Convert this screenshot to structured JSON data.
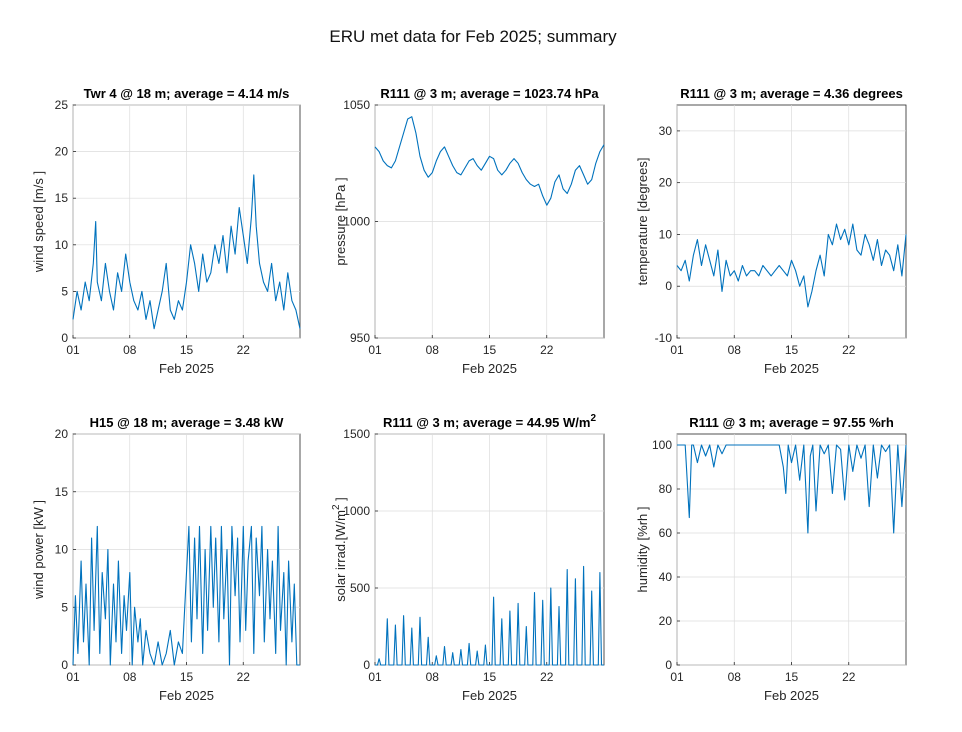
{
  "figure": {
    "title": "ERU met data for Feb 2025; summary",
    "series_color": "#0072BD"
  },
  "chart_data": [
    {
      "type": "line",
      "title": "Twr 4 @ 18  m; average = 4.14 m/s",
      "ylabel": "wind speed  [m/s    ]",
      "xlabel": "Feb 2025",
      "xlim": [
        1,
        29
      ],
      "ylim": [
        0,
        25
      ],
      "xticks": [
        1,
        8,
        15,
        22
      ],
      "xtick_labels": [
        "01",
        "08",
        "15",
        "22"
      ],
      "yticks": [
        0,
        5,
        10,
        15,
        20,
        25
      ],
      "grid": true,
      "series": [
        {
          "x": [
            1,
            1.5,
            2,
            2.5,
            3,
            3.5,
            3.8,
            4,
            4.5,
            5,
            5.5,
            6,
            6.5,
            7,
            7.5,
            8,
            8.5,
            9,
            9.5,
            10,
            10.5,
            11,
            11.5,
            12,
            12.5,
            13,
            13.5,
            14,
            14.5,
            15,
            15.5,
            16,
            16.5,
            17,
            17.5,
            18,
            18.5,
            19,
            19.5,
            20,
            20.5,
            21,
            21.5,
            22,
            22.5,
            23,
            23.3,
            23.6,
            24,
            24.5,
            25,
            25.5,
            26,
            26.5,
            27,
            27.5,
            28,
            28.5,
            29
          ],
          "y": [
            2,
            5,
            3,
            6,
            4,
            8,
            12.5,
            6,
            4,
            8,
            5,
            3,
            7,
            5,
            9,
            6,
            4,
            3,
            5,
            2,
            4,
            1,
            3,
            5,
            8,
            3,
            2,
            4,
            3,
            6,
            10,
            8,
            5,
            9,
            6,
            7,
            10,
            8,
            11,
            7,
            12,
            9,
            14,
            11,
            8,
            13,
            17.5,
            12,
            8,
            6,
            5,
            8,
            4,
            6,
            3,
            7,
            4,
            3,
            1
          ]
        }
      ]
    },
    {
      "type": "line",
      "title": "R111  @ 3   m; average = 1023.74 hPa",
      "ylabel": "pressure   [hPa    ]",
      "xlabel": "Feb 2025",
      "xlim": [
        1,
        29
      ],
      "ylim": [
        950,
        1050
      ],
      "xticks": [
        1,
        8,
        15,
        22
      ],
      "xtick_labels": [
        "01",
        "08",
        "15",
        "22"
      ],
      "yticks": [
        950,
        1000,
        1050
      ],
      "grid": true,
      "series": [
        {
          "x": [
            1,
            1.5,
            2,
            2.5,
            3,
            3.5,
            4,
            4.5,
            5,
            5.5,
            6,
            6.5,
            7,
            7.5,
            8,
            8.5,
            9,
            9.5,
            10,
            10.5,
            11,
            11.5,
            12,
            12.5,
            13,
            13.5,
            14,
            14.5,
            15,
            15.5,
            16,
            16.5,
            17,
            17.5,
            18,
            18.5,
            19,
            19.5,
            20,
            20.5,
            21,
            21.5,
            22,
            22.5,
            23,
            23.5,
            24,
            24.5,
            25,
            25.5,
            26,
            26.5,
            27,
            27.5,
            28,
            28.5,
            29
          ],
          "y": [
            1032,
            1030,
            1026,
            1024,
            1023,
            1026,
            1032,
            1038,
            1044,
            1045,
            1038,
            1028,
            1022,
            1019,
            1021,
            1026,
            1030,
            1032,
            1028,
            1024,
            1021,
            1020,
            1023,
            1026,
            1027,
            1024,
            1022,
            1025,
            1028,
            1027,
            1022,
            1020,
            1022,
            1025,
            1027,
            1025,
            1021,
            1018,
            1016,
            1015,
            1016,
            1011,
            1007,
            1010,
            1017,
            1020,
            1014,
            1012,
            1016,
            1022,
            1024,
            1020,
            1016,
            1018,
            1025,
            1030,
            1033
          ]
        }
      ]
    },
    {
      "type": "line",
      "title": "R111  @ 3   m; average = 4.36 degrees",
      "ylabel": "temperature [degrees]",
      "xlabel": "Feb 2025",
      "xlim": [
        1,
        29
      ],
      "ylim": [
        -10,
        35
      ],
      "xticks": [
        1,
        8,
        15,
        22
      ],
      "xtick_labels": [
        "01",
        "08",
        "15",
        "22"
      ],
      "yticks": [
        -10,
        0,
        10,
        20,
        30
      ],
      "grid": true,
      "series": [
        {
          "x": [
            1,
            1.5,
            2,
            2.5,
            3,
            3.5,
            4,
            4.5,
            5,
            5.5,
            6,
            6.5,
            7,
            7.5,
            8,
            8.5,
            9,
            9.5,
            10,
            10.5,
            11,
            11.5,
            12,
            12.5,
            13,
            13.5,
            14,
            14.5,
            15,
            15.5,
            16,
            16.5,
            17,
            17.5,
            18,
            18.5,
            19,
            19.5,
            20,
            20.5,
            21,
            21.5,
            22,
            22.5,
            23,
            23.5,
            24,
            24.5,
            25,
            25.5,
            26,
            26.5,
            27,
            27.5,
            28,
            28.5,
            29
          ],
          "y": [
            4,
            3,
            5,
            1,
            6,
            9,
            4,
            8,
            5,
            2,
            7,
            -1,
            5,
            2,
            3,
            1,
            4,
            2,
            3,
            3,
            2,
            4,
            3,
            2,
            3,
            4,
            3,
            2,
            5,
            3,
            0,
            2,
            -4,
            -1,
            3,
            6,
            2,
            10,
            8,
            12,
            9,
            11,
            8,
            12,
            7,
            6,
            10,
            8,
            5,
            9,
            4,
            7,
            6,
            3,
            8,
            2,
            10
          ]
        }
      ]
    },
    {
      "type": "line",
      "title": "H15   @ 18  m; average = 3.48 kW",
      "ylabel": "wind power  [kW    ]",
      "xlabel": "Feb 2025",
      "xlim": [
        1,
        29
      ],
      "ylim": [
        0,
        20
      ],
      "xticks": [
        1,
        8,
        15,
        22
      ],
      "xtick_labels": [
        "01",
        "08",
        "15",
        "22"
      ],
      "yticks": [
        0,
        5,
        10,
        15,
        20
      ],
      "grid": true,
      "series": [
        {
          "x": [
            1,
            1.3,
            1.6,
            2,
            2.3,
            2.6,
            3,
            3.3,
            3.6,
            4,
            4.3,
            4.6,
            5,
            5.3,
            5.6,
            6,
            6.3,
            6.6,
            7,
            7.3,
            7.6,
            8,
            8.3,
            8.6,
            9,
            9.3,
            9.6,
            10,
            10.5,
            11,
            11.5,
            12,
            12.5,
            13,
            13.5,
            14,
            14.5,
            15,
            15.3,
            15.6,
            16,
            16.3,
            16.6,
            17,
            17.3,
            17.6,
            18,
            18.3,
            18.6,
            19,
            19.3,
            19.6,
            20,
            20.3,
            20.6,
            21,
            21.3,
            21.6,
            22,
            22.3,
            22.6,
            23,
            23.3,
            23.6,
            24,
            24.3,
            24.6,
            25,
            25.3,
            25.6,
            26,
            26.3,
            26.6,
            27,
            27.3,
            27.6,
            28,
            28.3,
            28.6,
            29
          ],
          "y": [
            0,
            6,
            1,
            9,
            2,
            7,
            0,
            11,
            3,
            12,
            1,
            8,
            4,
            10,
            0,
            7,
            2,
            9,
            1,
            6,
            3,
            8,
            0,
            5,
            2,
            4,
            0,
            3,
            1,
            0,
            2,
            0,
            1,
            3,
            0,
            2,
            1,
            8,
            12,
            2,
            11,
            4,
            12,
            1,
            10,
            3,
            12,
            5,
            11,
            2,
            12,
            4,
            10,
            0,
            12,
            6,
            11,
            2,
            12,
            3,
            9,
            12,
            1,
            11,
            6,
            12,
            2,
            10,
            4,
            9,
            1,
            12,
            3,
            8,
            0,
            9,
            2,
            7,
            0,
            0
          ]
        }
      ]
    },
    {
      "type": "line",
      "title": "R111  @ 3   m; average = 44.95 W/m",
      "title_sup": "2",
      "ylabel": "solar irrad.[W/m",
      "ylabel_sup": "2",
      "ylabel_tail": "    ]",
      "xlabel": "Feb 2025",
      "xlim": [
        1,
        29
      ],
      "ylim": [
        0,
        1500
      ],
      "xticks": [
        1,
        8,
        15,
        22
      ],
      "xtick_labels": [
        "01",
        "08",
        "15",
        "22"
      ],
      "yticks": [
        0,
        500,
        1000,
        1500
      ],
      "grid": true,
      "series": [
        {
          "x": [
            1,
            1.3,
            1.5,
            1.7,
            2,
            2.3,
            2.5,
            2.7,
            3,
            3.3,
            3.5,
            3.7,
            4,
            4.3,
            4.5,
            4.7,
            5,
            5.3,
            5.5,
            5.7,
            6,
            6.3,
            6.5,
            6.7,
            7,
            7.3,
            7.5,
            7.7,
            8,
            8.3,
            8.5,
            8.7,
            9,
            9.3,
            9.5,
            9.7,
            10,
            10.3,
            10.5,
            10.7,
            11,
            11.3,
            11.5,
            11.7,
            12,
            12.3,
            12.5,
            12.7,
            13,
            13.3,
            13.5,
            13.7,
            14,
            14.3,
            14.5,
            14.7,
            15,
            15.3,
            15.5,
            15.7,
            16,
            16.3,
            16.5,
            16.7,
            17,
            17.3,
            17.5,
            17.7,
            18,
            18.3,
            18.5,
            18.7,
            19,
            19.3,
            19.5,
            19.7,
            20,
            20.3,
            20.5,
            20.7,
            21,
            21.3,
            21.5,
            21.7,
            22,
            22.3,
            22.5,
            22.7,
            23,
            23.3,
            23.5,
            23.7,
            24,
            24.3,
            24.5,
            24.7,
            25,
            25.3,
            25.5,
            25.7,
            26,
            26.3,
            26.5,
            26.7,
            27,
            27.3,
            27.5,
            27.7,
            28,
            28.3,
            28.5,
            28.7,
            29
          ],
          "y": [
            0,
            0,
            40,
            0,
            0,
            0,
            300,
            0,
            0,
            0,
            260,
            0,
            0,
            0,
            320,
            0,
            0,
            0,
            240,
            0,
            0,
            0,
            310,
            0,
            0,
            0,
            180,
            0,
            0,
            0,
            60,
            0,
            0,
            0,
            120,
            0,
            0,
            0,
            80,
            0,
            0,
            0,
            100,
            0,
            0,
            0,
            140,
            0,
            0,
            0,
            90,
            0,
            0,
            0,
            130,
            0,
            0,
            0,
            440,
            0,
            0,
            0,
            300,
            0,
            0,
            0,
            350,
            0,
            0,
            0,
            400,
            0,
            0,
            0,
            250,
            0,
            0,
            0,
            470,
            0,
            0,
            0,
            420,
            0,
            0,
            0,
            500,
            0,
            0,
            0,
            380,
            0,
            0,
            0,
            620,
            0,
            0,
            0,
            560,
            0,
            0,
            0,
            640,
            0,
            0,
            0,
            480,
            0,
            0,
            0,
            600,
            0,
            0
          ]
        }
      ]
    },
    {
      "type": "line",
      "title": "R111  @ 3   m; average = 97.55 %rh",
      "ylabel": "humidity     [%rh     ]",
      "xlabel": "Feb 2025",
      "xlim": [
        1,
        29
      ],
      "ylim": [
        0,
        105
      ],
      "xticks": [
        1,
        8,
        15,
        22
      ],
      "xtick_labels": [
        "01",
        "08",
        "15",
        "22"
      ],
      "yticks": [
        0,
        20,
        40,
        60,
        80,
        100
      ],
      "grid": true,
      "series": [
        {
          "x": [
            1,
            2,
            2.5,
            2.8,
            3,
            3.5,
            4,
            4.5,
            5,
            5.5,
            6,
            6.5,
            7,
            7.5,
            8,
            9,
            10,
            11,
            12,
            13,
            13.5,
            14,
            14.3,
            14.6,
            15,
            15.5,
            16,
            16.5,
            17,
            17.3,
            17.6,
            18,
            18.5,
            19,
            19.5,
            20,
            20.5,
            21,
            21.5,
            22,
            22.5,
            23,
            23.5,
            24,
            24.5,
            25,
            25.5,
            26,
            26.5,
            27,
            27.5,
            28,
            28.5,
            29
          ],
          "y": [
            100,
            100,
            67,
            100,
            100,
            92,
            100,
            95,
            100,
            90,
            100,
            96,
            100,
            100,
            100,
            100,
            100,
            100,
            100,
            100,
            100,
            90,
            78,
            100,
            92,
            100,
            84,
            100,
            60,
            95,
            100,
            70,
            100,
            96,
            100,
            78,
            100,
            98,
            75,
            100,
            88,
            100,
            94,
            100,
            72,
            100,
            85,
            100,
            97,
            100,
            60,
            100,
            72,
            100
          ]
        }
      ]
    }
  ]
}
